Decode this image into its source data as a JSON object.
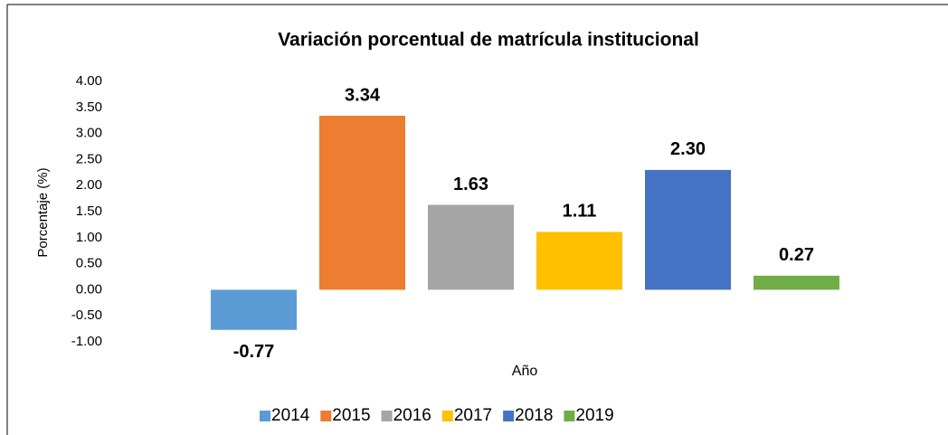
{
  "chart_data": {
    "type": "bar",
    "title": "Variación porcentual de matrícula institucional",
    "x_label": "Año",
    "y_label": "Porcentaje  (%)",
    "categories": [
      null
    ],
    "series": [
      {
        "name": "2014",
        "color": "#5b9bd5",
        "values": [
          -0.77
        ],
        "value_labels": [
          "-0.77"
        ]
      },
      {
        "name": "2015",
        "color": "#ed7d31",
        "values": [
          3.34
        ],
        "value_labels": [
          "3.34"
        ]
      },
      {
        "name": "2016",
        "color": "#a5a5a5",
        "values": [
          1.63
        ],
        "value_labels": [
          "1.63"
        ]
      },
      {
        "name": "2017",
        "color": "#ffc000",
        "values": [
          1.11
        ],
        "value_labels": [
          "1.11"
        ]
      },
      {
        "name": "2018",
        "color": "#4472c4",
        "values": [
          2.3
        ],
        "value_labels": [
          "2.30"
        ]
      },
      {
        "name": "2019",
        "color": "#70ad47",
        "values": [
          0.27
        ],
        "value_labels": [
          "0.27"
        ]
      }
    ],
    "ylim": [
      -1,
      4
    ],
    "yticks": [
      {
        "value": -1,
        "label": "-1.00"
      },
      {
        "value": -0.5,
        "label": "-0.50"
      },
      {
        "value": 0,
        "label": "0.00"
      },
      {
        "value": 0.5,
        "label": "0.50"
      },
      {
        "value": 1,
        "label": "1.00"
      },
      {
        "value": 1.5,
        "label": "1.50"
      },
      {
        "value": 2,
        "label": "2.00"
      },
      {
        "value": 2.5,
        "label": "2.50"
      },
      {
        "value": 3,
        "label": "3.00"
      },
      {
        "value": 3.5,
        "label": "3.50"
      },
      {
        "value": 4,
        "label": "4.00"
      }
    ],
    "grid": false,
    "legend": "bottom"
  }
}
